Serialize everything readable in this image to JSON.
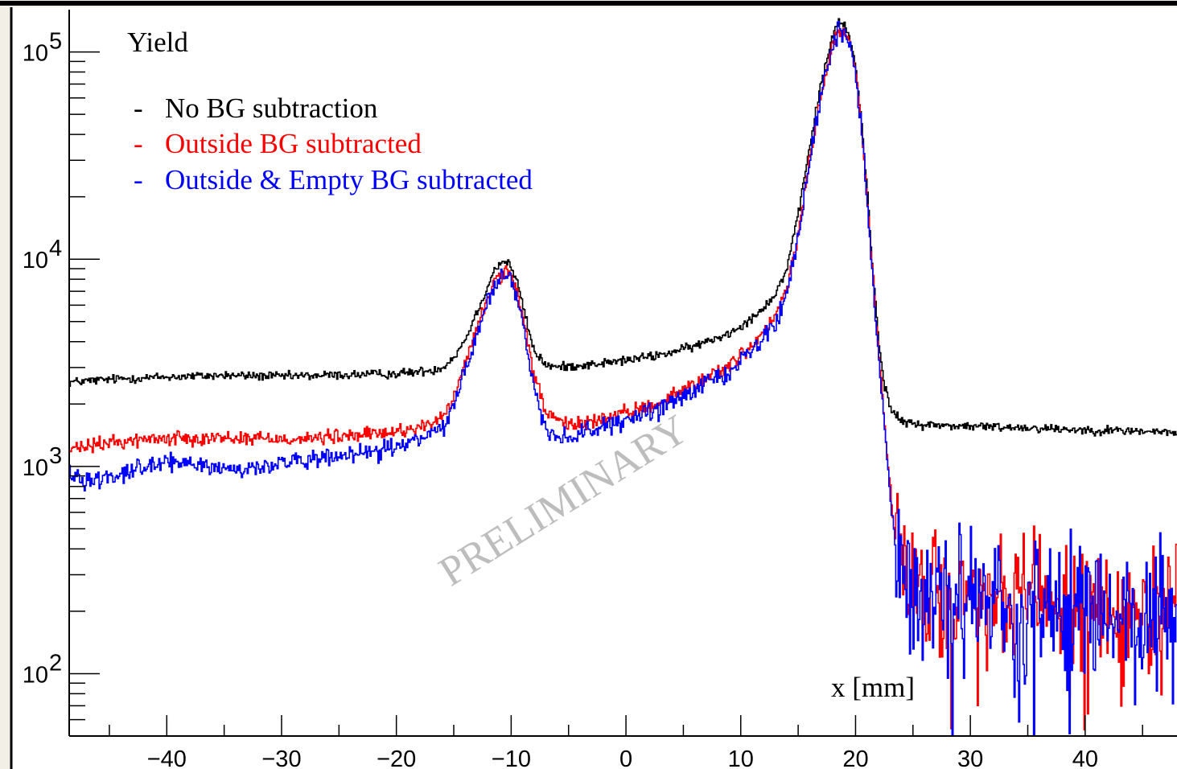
{
  "chart_data": {
    "type": "line",
    "title": "",
    "ylabel": "Yield",
    "xlabel": "x [mm]",
    "xlim": [
      -48.5,
      48
    ],
    "ylim": [
      50,
      160000
    ],
    "yscale": "log",
    "x_ticks": [
      -40,
      -30,
      -20,
      -10,
      0,
      10,
      20,
      30,
      40
    ],
    "x_tick_labels": [
      "−40",
      "−30",
      "−20",
      "−10",
      "0",
      "10",
      "20",
      "30",
      "40"
    ],
    "y_ticks": [
      {
        "value": 100,
        "base": "10",
        "exp": "2"
      },
      {
        "value": 1000,
        "base": "10",
        "exp": "3"
      },
      {
        "value": 10000,
        "base": "10",
        "exp": "4"
      },
      {
        "value": 100000,
        "base": "10",
        "exp": "5"
      }
    ],
    "legend_placement": "top-left",
    "watermark": "PRELIMINARY",
    "series": [
      {
        "name": "No BG subtraction",
        "legend_prefix": "-",
        "color": "#000000",
        "x": [
          -48.5,
          -44,
          -40,
          -35,
          -30,
          -25,
          -20,
          -17,
          -16,
          -15,
          -14,
          -13,
          -12,
          -11.5,
          -11,
          -10.5,
          -10,
          -9.5,
          -9,
          -8.5,
          -8,
          -7,
          -6,
          -5,
          -3,
          0,
          3,
          6,
          9,
          11,
          13,
          14,
          15,
          16,
          17,
          18,
          18.5,
          19,
          19.5,
          20,
          20.5,
          21,
          21.5,
          22,
          22.5,
          23,
          23.5,
          24,
          25,
          27,
          30,
          35,
          40,
          45,
          48
        ],
        "y": [
          2550,
          2650,
          2700,
          2750,
          2720,
          2760,
          2800,
          2900,
          3000,
          3350,
          4100,
          5500,
          7500,
          8800,
          9500,
          9800,
          9200,
          7800,
          6100,
          4600,
          3600,
          3100,
          3000,
          3050,
          3100,
          3250,
          3450,
          3800,
          4400,
          5200,
          6700,
          9000,
          16000,
          35000,
          70000,
          120000,
          138000,
          135000,
          118000,
          85000,
          48000,
          22000,
          9000,
          4200,
          2500,
          1950,
          1750,
          1650,
          1600,
          1580,
          1560,
          1540,
          1500,
          1480,
          1450
        ],
        "noise": 0.025
      },
      {
        "name": "Outside BG subtracted",
        "legend_prefix": "-",
        "color": "#ff0000",
        "x": [
          -48.5,
          -45,
          -42,
          -38,
          -33,
          -28,
          -24,
          -20,
          -17,
          -16,
          -15,
          -14,
          -13,
          -12,
          -11.5,
          -11,
          -10.5,
          -10,
          -9.5,
          -9,
          -8.5,
          -8,
          -7,
          -6,
          -5,
          -3,
          0,
          3,
          6,
          9,
          11,
          13,
          14,
          15,
          16,
          17,
          18,
          18.5,
          19,
          19.5,
          20,
          20.5,
          21,
          21.5,
          22,
          22.5,
          23,
          23.5,
          24,
          25,
          27,
          30,
          35,
          40,
          45,
          48
        ],
        "y": [
          1200,
          1300,
          1350,
          1380,
          1370,
          1360,
          1400,
          1470,
          1600,
          1700,
          2150,
          3100,
          4600,
          6700,
          7700,
          8300,
          8600,
          8100,
          6900,
          5300,
          3800,
          2800,
          1850,
          1650,
          1580,
          1650,
          1800,
          2050,
          2500,
          3100,
          3800,
          5200,
          7200,
          13000,
          30000,
          62000,
          108000,
          128000,
          125000,
          110000,
          80000,
          45000,
          20000,
          8500,
          3600,
          1700,
          820,
          420,
          300,
          260,
          240,
          230,
          220,
          210,
          200,
          190
        ],
        "noise": 0.04,
        "noise_tail": 0.35
      },
      {
        "name": "Outside & Empty BG subtracted",
        "legend_prefix": "-",
        "color": "#0000ff",
        "x": [
          -48.5,
          -47,
          -45,
          -42,
          -38,
          -34,
          -32,
          -29,
          -25,
          -21,
          -18,
          -17,
          -16,
          -15,
          -14,
          -13,
          -12,
          -11.5,
          -11,
          -10.5,
          -10,
          -9.5,
          -9,
          -8.5,
          -8,
          -7,
          -6,
          -5,
          -3,
          0,
          3,
          6,
          9,
          11,
          13,
          14,
          15,
          16,
          17,
          18,
          18.5,
          19,
          19.5,
          20,
          20.5,
          21,
          21.5,
          22,
          22.5,
          23,
          23.5,
          24,
          25,
          27,
          30,
          35,
          40,
          45,
          48
        ],
        "y": [
          950,
          850,
          900,
          1000,
          1050,
          950,
          1000,
          1050,
          1100,
          1200,
          1350,
          1450,
          1520,
          2000,
          2900,
          4400,
          6400,
          7400,
          8000,
          8300,
          7800,
          6500,
          4900,
          3400,
          2400,
          1550,
          1380,
          1400,
          1500,
          1650,
          1900,
          2350,
          2900,
          3600,
          4900,
          6900,
          12500,
          29000,
          61000,
          107000,
          127000,
          124000,
          109000,
          79000,
          44000,
          19500,
          8300,
          3500,
          1650,
          780,
          400,
          285,
          245,
          230,
          215,
          205,
          195,
          185,
          180
        ],
        "noise": 0.05,
        "noise_tail": 0.4
      }
    ]
  }
}
